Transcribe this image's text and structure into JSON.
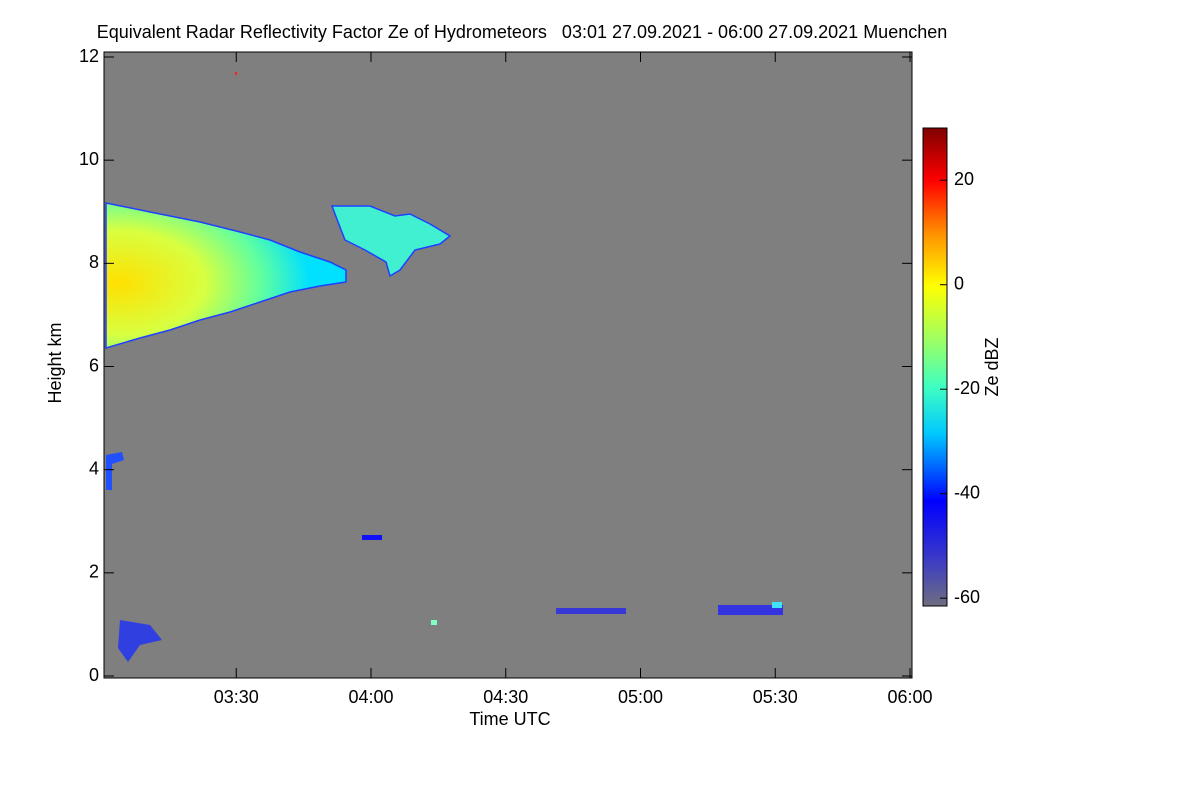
{
  "chart_data": {
    "type": "heatmap",
    "title": "Equivalent Radar Reflectivity Factor Ze of Hydrometeors   03:01 27.09.2021 - 06:00 27.09.2021 Muenchen",
    "xlabel": "Time UTC",
    "ylabel": "Height km",
    "colorbar_label": "Ze dBZ",
    "xlim": [
      181,
      360
    ],
    "xticks": [
      {
        "value": 210,
        "label": "03:30"
      },
      {
        "value": 240,
        "label": "04:00"
      },
      {
        "value": 270,
        "label": "04:30"
      },
      {
        "value": 300,
        "label": "05:00"
      },
      {
        "value": 330,
        "label": "05:30"
      },
      {
        "value": 360,
        "label": "06:00"
      }
    ],
    "ylim": [
      0,
      12
    ],
    "yticks": [
      0,
      2,
      4,
      6,
      8,
      10,
      12
    ],
    "clim": [
      -61.5,
      30
    ],
    "cticks": [
      -60,
      -40,
      -20,
      0,
      20
    ],
    "background_color": "#7f7f7f"
  }
}
